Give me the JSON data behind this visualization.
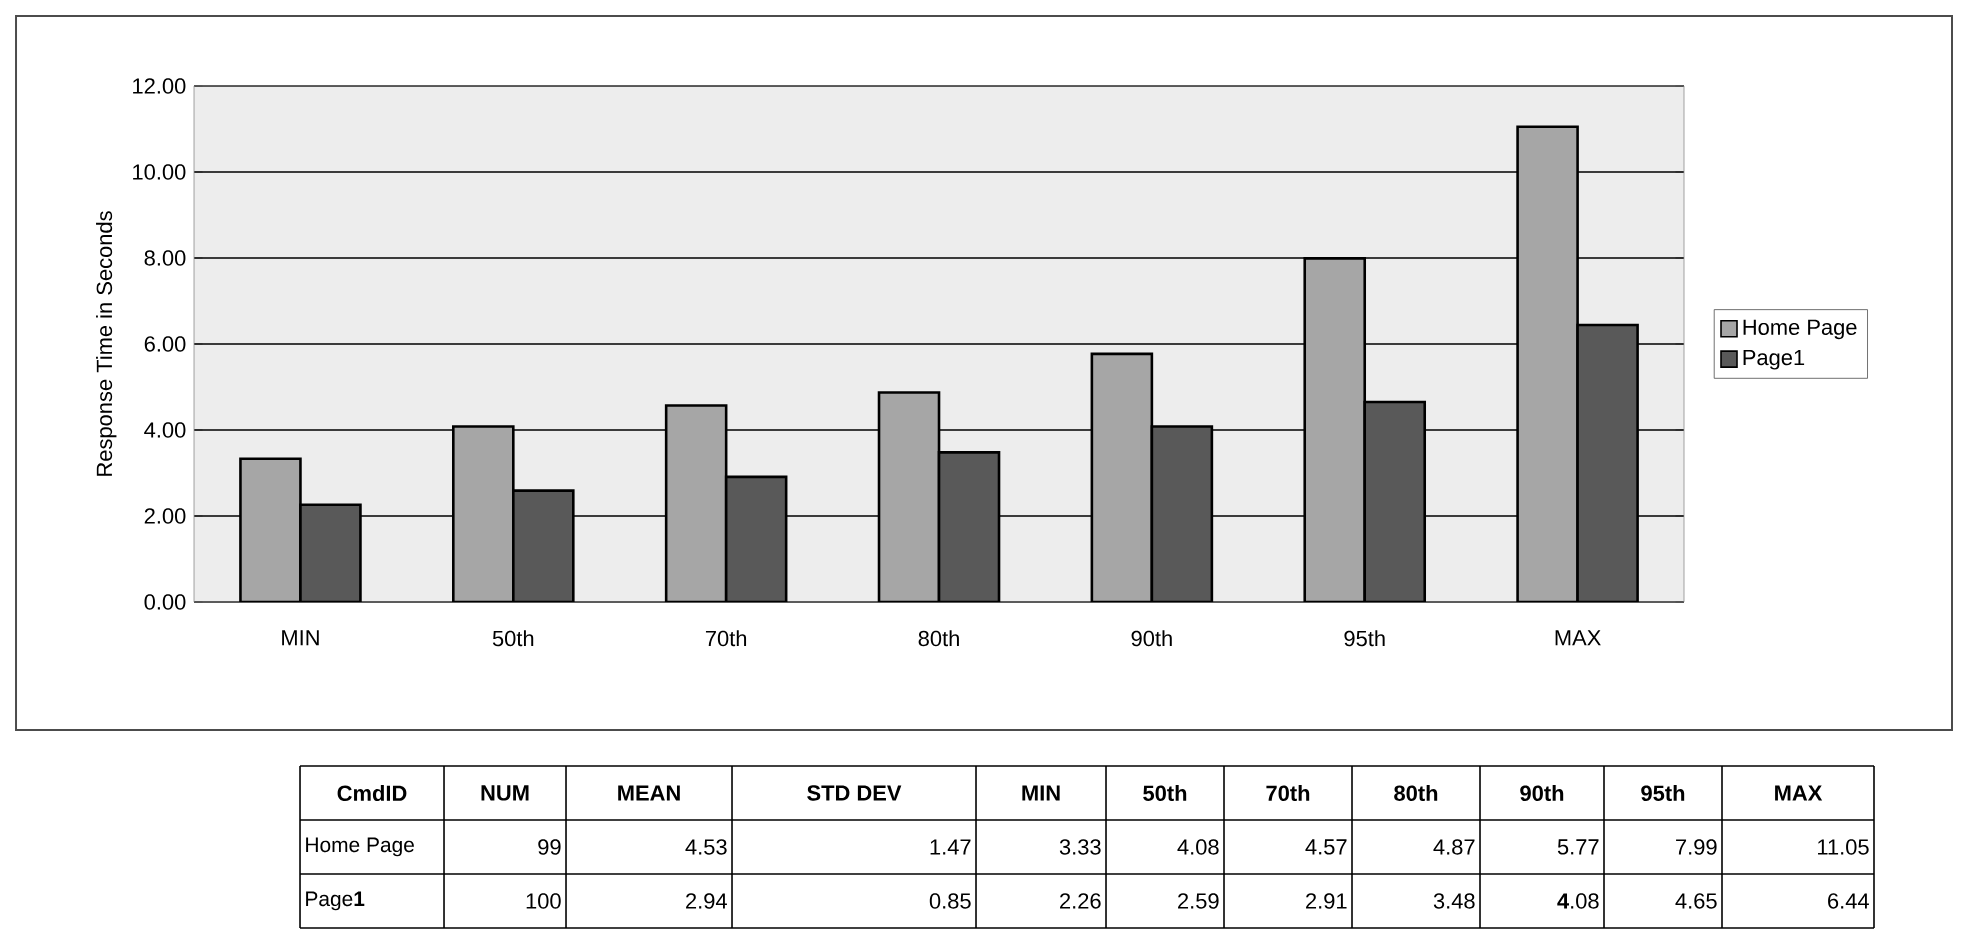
{
  "chart_data": [
    {
      "type": "bar",
      "ylabel": "Response Time in Seconds",
      "categories": [
        "MIN",
        "50th",
        "70th",
        "80th",
        "90th",
        "95th",
        "MAX"
      ],
      "series": [
        {
          "name": "Home Page",
          "color": "#a6a6a6",
          "values": [
            3.33,
            4.08,
            4.57,
            4.87,
            5.77,
            7.99,
            11.05
          ]
        },
        {
          "name": "Page1",
          "color": "#595959",
          "values": [
            2.26,
            2.59,
            2.91,
            3.48,
            4.08,
            4.65,
            6.44
          ]
        }
      ],
      "ylim": [
        0,
        12
      ],
      "yticks": [
        {
          "value": 0,
          "label": "0.00"
        },
        {
          "value": 2,
          "label": "2.00"
        },
        {
          "value": 4,
          "label": "4.00"
        },
        {
          "value": 6,
          "label": "6.00"
        },
        {
          "value": 8,
          "label": "8.00"
        },
        {
          "value": 10,
          "label": "10.00"
        },
        {
          "value": 12,
          "label": "12.00"
        }
      ],
      "grid": "y",
      "legend": "right"
    },
    {
      "type": "other",
      "categories": [
        "CmdID",
        "NUM",
        "MEAN",
        "STD DEV",
        "MIN",
        "50th",
        "70th",
        "80th",
        "90th",
        "95th",
        "MAX"
      ],
      "annotations": [
        "Home Page",
        "99",
        "4.53",
        "1.47",
        "3.33",
        "4.08",
        "4.57",
        "4.87",
        "5.77",
        "7.99",
        "11.05",
        "Page**1**",
        "100",
        "2.94",
        "0.85",
        "2.26",
        "2.59",
        "2.91",
        "3.48",
        "**4**.08",
        "4.65",
        "6.44"
      ]
    }
  ]
}
